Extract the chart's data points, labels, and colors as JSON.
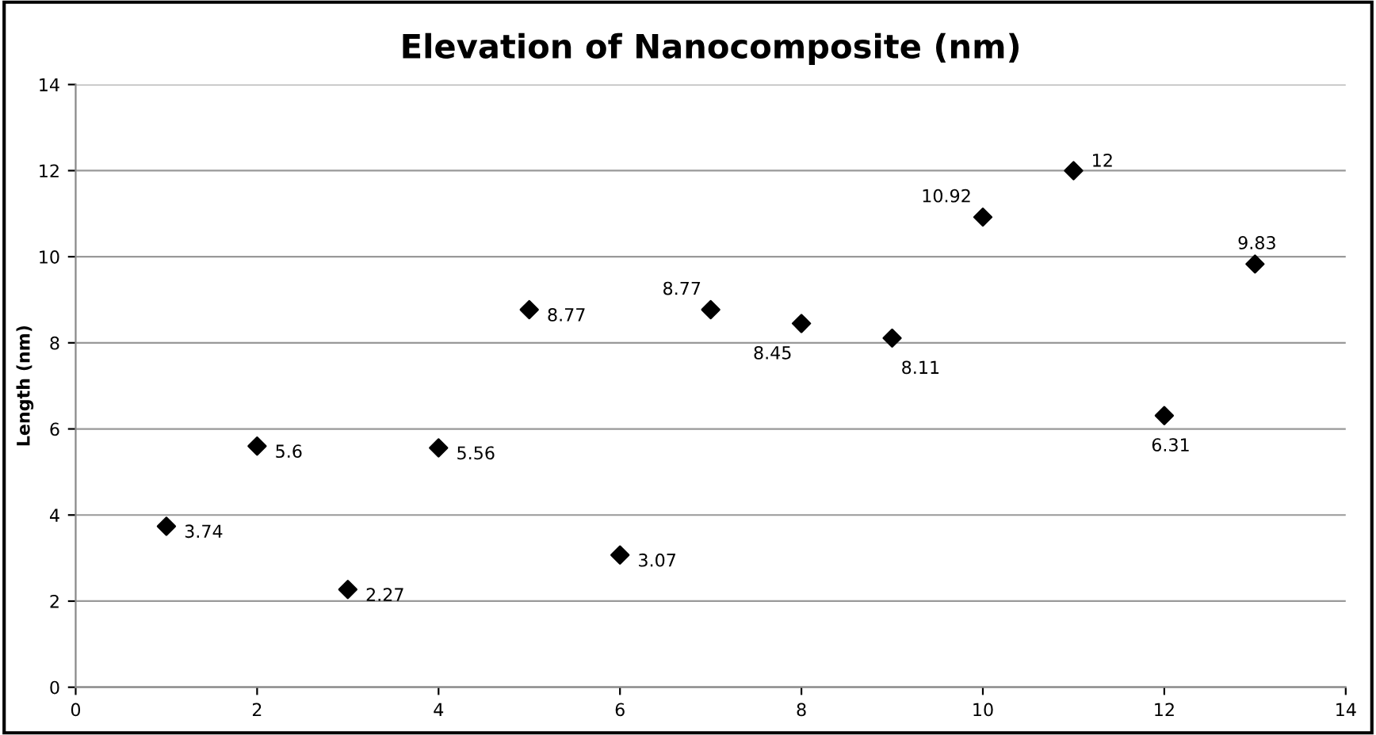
{
  "chart_data": {
    "type": "scatter",
    "title": "Elevation of Nanocomposite (nm)",
    "ylabel": "Length (nm)",
    "x": [
      1,
      2,
      3,
      4,
      5,
      6,
      7,
      8,
      9,
      10,
      11,
      12,
      13
    ],
    "series": [
      {
        "color": "#000000",
        "values": [
          3.74,
          5.6,
          2.27,
          5.56,
          8.77,
          3.07,
          8.77,
          8.45,
          8.11,
          10.92,
          12,
          6.31,
          9.83
        ]
      }
    ],
    "value_labels": [
      "3.74",
      "5.6",
      "2.27",
      "5.56",
      "8.77",
      "3.07",
      "8.77",
      "8.45",
      "8.11",
      "10.92",
      "12",
      "6.31",
      "9.83"
    ],
    "xlim": [
      0,
      14
    ],
    "xticks": [
      0,
      2,
      4,
      6,
      8,
      10,
      12,
      14
    ],
    "ylim": [
      0,
      14
    ],
    "yticks": [
      0,
      2,
      4,
      6,
      8,
      10,
      12,
      14
    ],
    "grid": "y",
    "marker": "diamond"
  }
}
